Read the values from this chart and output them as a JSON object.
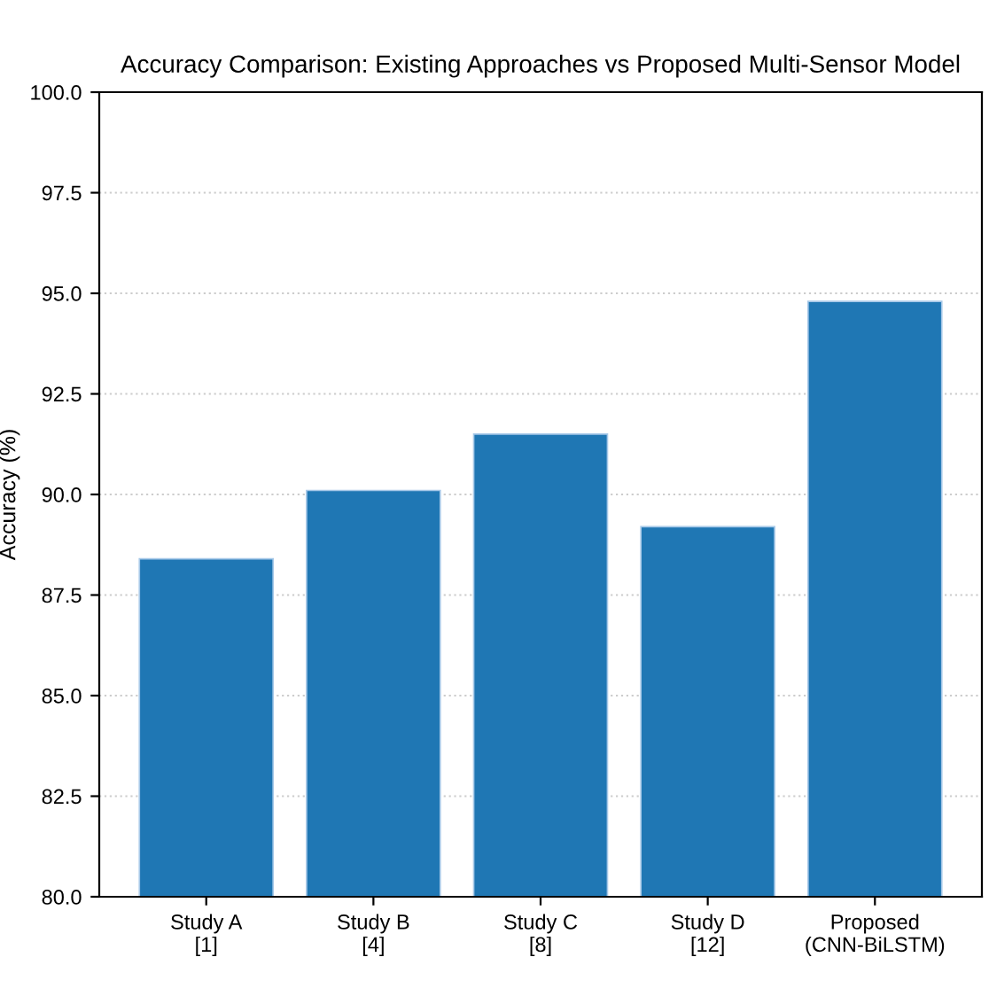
{
  "chart_data": {
    "type": "bar",
    "title": "Accuracy Comparison: Existing Approaches vs Proposed Multi-Sensor Model",
    "ylabel": "Accuracy (%)",
    "categories": [
      "Study A\n[1]",
      "Study B\n[4]",
      "Study C\n[8]",
      "Study D\n[12]",
      "Proposed\n(CNN-BiLSTM)"
    ],
    "values": [
      88.4,
      90.1,
      91.5,
      89.2,
      94.8
    ],
    "color": "#1f77b4",
    "ylim": [
      80,
      100
    ],
    "yticks": [
      {
        "value": 80,
        "label": "80.0"
      },
      {
        "value": 82.5,
        "label": "82.5"
      },
      {
        "value": 85,
        "label": "85.0"
      },
      {
        "value": 87.5,
        "label": "87.5"
      },
      {
        "value": 90,
        "label": "90.0"
      },
      {
        "value": 92.5,
        "label": "92.5"
      },
      {
        "value": 95,
        "label": "95.0"
      },
      {
        "value": 97.5,
        "label": "97.5"
      },
      {
        "value": 100,
        "label": "100.0"
      }
    ],
    "grid": "y"
  }
}
